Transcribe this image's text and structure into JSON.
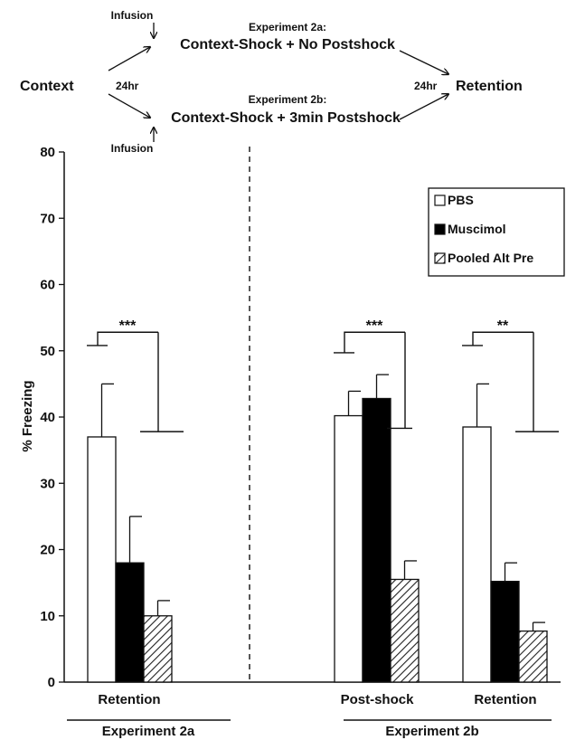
{
  "schematic": {
    "context": "Context",
    "h24_left": "24hr",
    "h24_right": "24hr",
    "retention": "Retention",
    "infusion_top": "Infusion",
    "infusion_bottom": "Infusion",
    "exp2a_label": "Experiment 2a:",
    "exp2a_proc": "Context-Shock + No Postshock",
    "exp2b_label": "Experiment 2b:",
    "exp2b_proc": "Context-Shock + 3min Postshock"
  },
  "chart_data": {
    "type": "bar",
    "ylabel": "% Freezing",
    "ylim": [
      0,
      80
    ],
    "yticks": [
      0,
      10,
      20,
      30,
      40,
      50,
      60,
      70,
      80
    ],
    "categories": [
      "Retention",
      "Post-shock",
      "Retention"
    ],
    "experiments": [
      {
        "label": "Experiment 2a",
        "categories": [
          0
        ]
      },
      {
        "label": "Experiment 2b",
        "categories": [
          1,
          2
        ]
      }
    ],
    "series": [
      {
        "name": "PBS",
        "values": [
          37,
          40.2,
          38.5
        ],
        "errors": [
          8,
          3.7,
          6.5
        ],
        "fill": "#ffffff"
      },
      {
        "name": "Muscimol",
        "values": [
          18,
          42.8,
          15.2
        ],
        "errors": [
          7,
          3.6,
          2.8
        ],
        "fill": "#000000"
      },
      {
        "name": "Pooled Alt Pre",
        "values": [
          10,
          15.5,
          7.7
        ],
        "errors": [
          2.3,
          2.8,
          1.3
        ],
        "fill": "hatch"
      }
    ],
    "significance": [
      {
        "category": 0,
        "label": "***"
      },
      {
        "category": 1,
        "label": "***"
      },
      {
        "category": 2,
        "label": "**"
      }
    ],
    "legend_position": "top-right",
    "divider": "dashed line between Experiment 2a and Experiment 2b"
  }
}
